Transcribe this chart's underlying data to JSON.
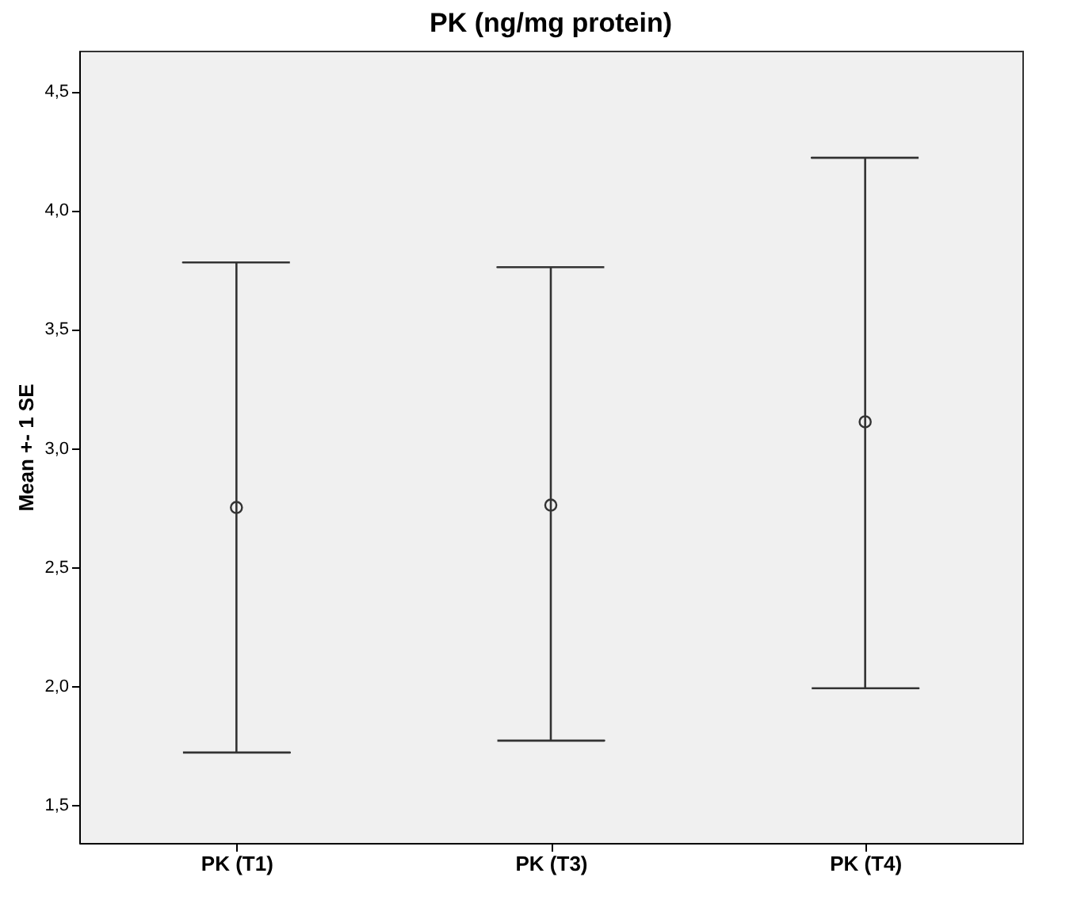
{
  "chart_data": {
    "type": "scatter",
    "title": "PK (ng/mg protein)",
    "ylabel": "Mean +- 1 SE",
    "categories": [
      "PK (T1)",
      "PK (T3)",
      "PK (T4)"
    ],
    "color": "#333333",
    "values": [
      2.75,
      2.76,
      3.11
    ],
    "errors": [
      [
        1.72,
        3.78
      ],
      [
        1.77,
        3.76
      ],
      [
        1.99,
        4.22
      ]
    ],
    "ylim": [
      1.34,
      4.67
    ],
    "yticks": [
      {
        "value": 1.5,
        "label": "1,5"
      },
      {
        "value": 2.0,
        "label": "2,0"
      },
      {
        "value": 2.5,
        "label": "2,5"
      },
      {
        "value": 3.0,
        "label": "3,0"
      },
      {
        "value": 3.5,
        "label": "3,5"
      },
      {
        "value": 4.0,
        "label": "4,0"
      },
      {
        "value": 4.5,
        "label": "4,5"
      }
    ],
    "grid": false,
    "marker": "circle"
  }
}
